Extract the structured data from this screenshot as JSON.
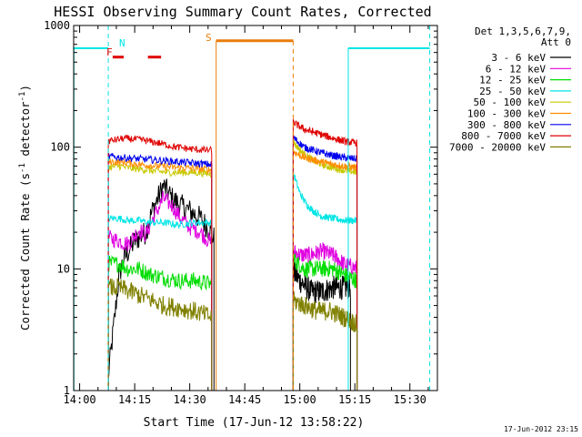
{
  "chart_data": {
    "type": "line",
    "title": "HESSI Observing Summary Count Rates, Corrected",
    "xlabel": "Start Time (17-Jun-12 13:58:22)",
    "ylabel_main": "Corrected Count Rate (s",
    "ylabel_sup1": "-1",
    "ylabel_mid": " detector",
    "ylabel_sup2": "-1",
    "ylabel_end": ")",
    "yscale": "log",
    "ylim": [
      1,
      1000
    ],
    "xlim": [
      "13:58:22",
      "15:37:30"
    ],
    "x_ticks": [
      "14:00",
      "14:15",
      "14:30",
      "14:45",
      "15:00",
      "15:15",
      "15:30"
    ],
    "y_ticks": [
      "1",
      "10",
      "100",
      "1000"
    ],
    "legend_title": "Det 1,3,5,6,7,9,",
    "legend_subtitle": "Att 0",
    "legend_placement": "top-right",
    "footer_timestamp": "17-Jun-2012 23:15",
    "markers": [
      {
        "label": "N",
        "color": "#00e5e5"
      },
      {
        "label": "F",
        "color": "#e00000"
      },
      {
        "label": "S",
        "color": "#e87d0c"
      }
    ],
    "series": [
      {
        "name": "3 - 6 keV",
        "color": "#000000",
        "seg1": [
          [
            14.13,
            1.3
          ],
          [
            14.18,
            9
          ],
          [
            14.2,
            12
          ],
          [
            14.25,
            17
          ],
          [
            14.3,
            20
          ],
          [
            14.33,
            30
          ],
          [
            14.38,
            48
          ],
          [
            14.42,
            38
          ],
          [
            14.46,
            33
          ],
          [
            14.5,
            30
          ],
          [
            14.55,
            26
          ],
          [
            14.58,
            22
          ],
          [
            14.61,
            18
          ]
        ],
        "seg2": [
          [
            14.97,
            9.5
          ],
          [
            15.0,
            8
          ],
          [
            15.05,
            6.5
          ],
          [
            15.1,
            6.5
          ],
          [
            15.15,
            7
          ],
          [
            15.2,
            7
          ],
          [
            15.23,
            7
          ]
        ]
      },
      {
        "name": "6 - 12 keV",
        "color": "#e000e0",
        "seg1": [
          [
            14.13,
            18
          ],
          [
            14.18,
            17
          ],
          [
            14.22,
            16
          ],
          [
            14.27,
            21
          ],
          [
            14.3,
            19
          ],
          [
            14.33,
            25
          ],
          [
            14.38,
            38
          ],
          [
            14.42,
            33
          ],
          [
            14.46,
            26
          ],
          [
            14.5,
            22
          ],
          [
            14.55,
            20
          ],
          [
            14.6,
            16
          ]
        ],
        "seg2": [
          [
            14.97,
            14
          ],
          [
            15.0,
            13
          ],
          [
            15.05,
            13
          ],
          [
            15.1,
            14
          ],
          [
            15.15,
            13
          ],
          [
            15.2,
            11
          ],
          [
            15.26,
            10
          ]
        ]
      },
      {
        "name": "12 - 25 keV",
        "color": "#00dd00",
        "seg1": [
          [
            14.13,
            11
          ],
          [
            14.18,
            11
          ],
          [
            14.22,
            10
          ],
          [
            14.27,
            10
          ],
          [
            14.32,
            9
          ],
          [
            14.38,
            8.5
          ],
          [
            14.45,
            8
          ],
          [
            14.52,
            8
          ],
          [
            14.6,
            7.5
          ]
        ],
        "seg2": [
          [
            14.97,
            12
          ],
          [
            15.02,
            10
          ],
          [
            15.08,
            10
          ],
          [
            15.15,
            10
          ],
          [
            15.2,
            9
          ],
          [
            15.26,
            8
          ]
        ]
      },
      {
        "name": "25 - 50 keV",
        "color": "#00e5e5",
        "seg1": [
          [
            14.13,
            26
          ],
          [
            14.18,
            26
          ],
          [
            14.22,
            25
          ],
          [
            14.27,
            25
          ],
          [
            14.32,
            24
          ],
          [
            14.38,
            24
          ],
          [
            14.45,
            23
          ],
          [
            14.52,
            24
          ],
          [
            14.6,
            24
          ]
        ],
        "seg2": [
          [
            14.97,
            62
          ],
          [
            15.0,
            42
          ],
          [
            15.03,
            34
          ],
          [
            15.06,
            30
          ],
          [
            15.1,
            27
          ],
          [
            15.15,
            26
          ],
          [
            15.2,
            25
          ],
          [
            15.26,
            25
          ]
        ]
      },
      {
        "name": "50 - 100 keV",
        "color": "#c8c800",
        "seg1": [
          [
            14.13,
            68
          ],
          [
            14.18,
            70
          ],
          [
            14.23,
            67
          ],
          [
            14.28,
            66
          ],
          [
            14.33,
            64
          ],
          [
            14.4,
            62
          ],
          [
            14.47,
            62
          ],
          [
            14.53,
            62
          ],
          [
            14.6,
            60
          ]
        ],
        "seg2": [
          [
            14.97,
            110
          ],
          [
            15.0,
            95
          ],
          [
            15.03,
            85
          ],
          [
            15.07,
            76
          ],
          [
            15.12,
            70
          ],
          [
            15.18,
            66
          ],
          [
            15.26,
            62
          ]
        ]
      },
      {
        "name": "100 - 300 keV",
        "color": "#ff8c00",
        "seg1": [
          [
            14.13,
            76
          ],
          [
            14.2,
            75
          ],
          [
            14.28,
            72
          ],
          [
            14.36,
            70
          ],
          [
            14.44,
            68
          ],
          [
            14.52,
            67
          ],
          [
            14.6,
            65
          ]
        ],
        "seg2": [
          [
            14.97,
            92
          ],
          [
            15.02,
            82
          ],
          [
            15.08,
            77
          ],
          [
            15.14,
            73
          ],
          [
            15.2,
            70
          ],
          [
            15.26,
            68
          ]
        ]
      },
      {
        "name": "300 - 800 keV",
        "color": "#0000ee",
        "seg1": [
          [
            14.13,
            84
          ],
          [
            14.2,
            82
          ],
          [
            14.28,
            80
          ],
          [
            14.36,
            78
          ],
          [
            14.44,
            76
          ],
          [
            14.52,
            74
          ],
          [
            14.6,
            72
          ]
        ],
        "seg2": [
          [
            14.97,
            120
          ],
          [
            15.02,
            100
          ],
          [
            15.08,
            92
          ],
          [
            15.14,
            86
          ],
          [
            15.2,
            82
          ],
          [
            15.26,
            80
          ]
        ]
      },
      {
        "name": "800 - 7000 keV",
        "color": "#e00000",
        "seg1": [
          [
            14.13,
            112
          ],
          [
            14.2,
            118
          ],
          [
            14.28,
            115
          ],
          [
            14.36,
            108
          ],
          [
            14.44,
            100
          ],
          [
            14.52,
            96
          ],
          [
            14.6,
            94
          ]
        ],
        "seg2": [
          [
            14.97,
            160
          ],
          [
            15.02,
            140
          ],
          [
            15.08,
            130
          ],
          [
            15.14,
            120
          ],
          [
            15.2,
            112
          ],
          [
            15.26,
            108
          ]
        ]
      },
      {
        "name": "7000 - 20000 keV",
        "color": "#808000",
        "seg1": [
          [
            14.13,
            7
          ],
          [
            14.18,
            7
          ],
          [
            14.23,
            6.5
          ],
          [
            14.28,
            6
          ],
          [
            14.33,
            5.5
          ],
          [
            14.38,
            5
          ],
          [
            14.45,
            4.8
          ],
          [
            14.52,
            4.5
          ],
          [
            14.6,
            4
          ]
        ],
        "seg2": [
          [
            14.97,
            5.5
          ],
          [
            15.02,
            5
          ],
          [
            15.08,
            4.5
          ],
          [
            15.14,
            4.5
          ],
          [
            15.2,
            4
          ],
          [
            15.26,
            3.5
          ]
        ]
      }
    ]
  }
}
